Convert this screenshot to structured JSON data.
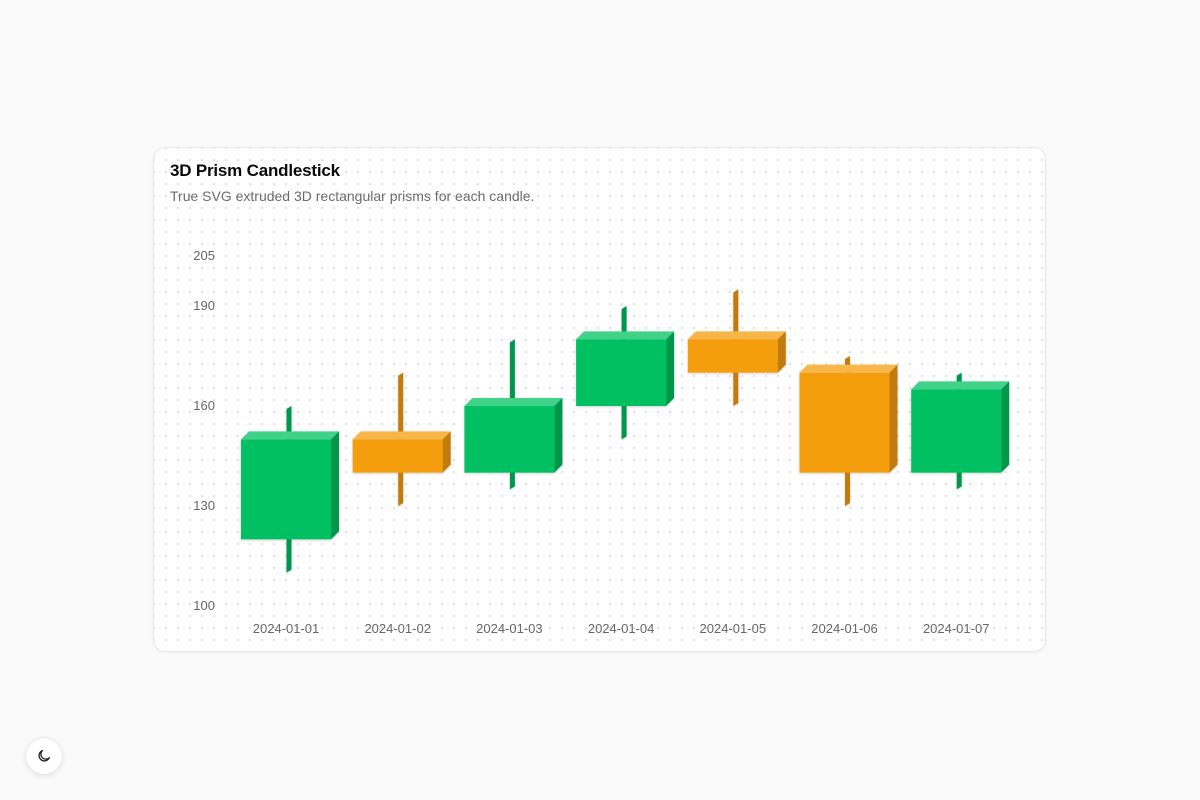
{
  "card": {
    "title": "3D Prism Candlestick",
    "subtitle": "True SVG extruded 3D rectangular prisms for each candle."
  },
  "theme_toggle": {
    "icon": "moon-icon"
  },
  "colors": {
    "up": "#00c062",
    "up_top": "#3fd289",
    "up_side": "#00974d",
    "down": "#f59e0b",
    "down_top": "#f8b649",
    "down_side": "#c27b08"
  },
  "chart_data": {
    "type": "candlestick",
    "title": "3D Prism Candlestick",
    "subtitle": "True SVG extruded 3D rectangular prisms for each candle.",
    "categories": [
      "2024-01-01",
      "2024-01-02",
      "2024-01-03",
      "2024-01-04",
      "2024-01-05",
      "2024-01-06",
      "2024-01-07"
    ],
    "open": [
      120,
      150,
      140,
      160,
      180,
      170,
      140
    ],
    "close": [
      150,
      140,
      160,
      180,
      170,
      140,
      165
    ],
    "high": [
      160,
      170,
      180,
      190,
      195,
      175,
      170
    ],
    "low": [
      110,
      130,
      135,
      150,
      160,
      130,
      135
    ],
    "yticks": [
      100,
      130,
      160,
      190,
      205
    ],
    "ylim": [
      100,
      205
    ],
    "grid": false,
    "legend": "none"
  }
}
